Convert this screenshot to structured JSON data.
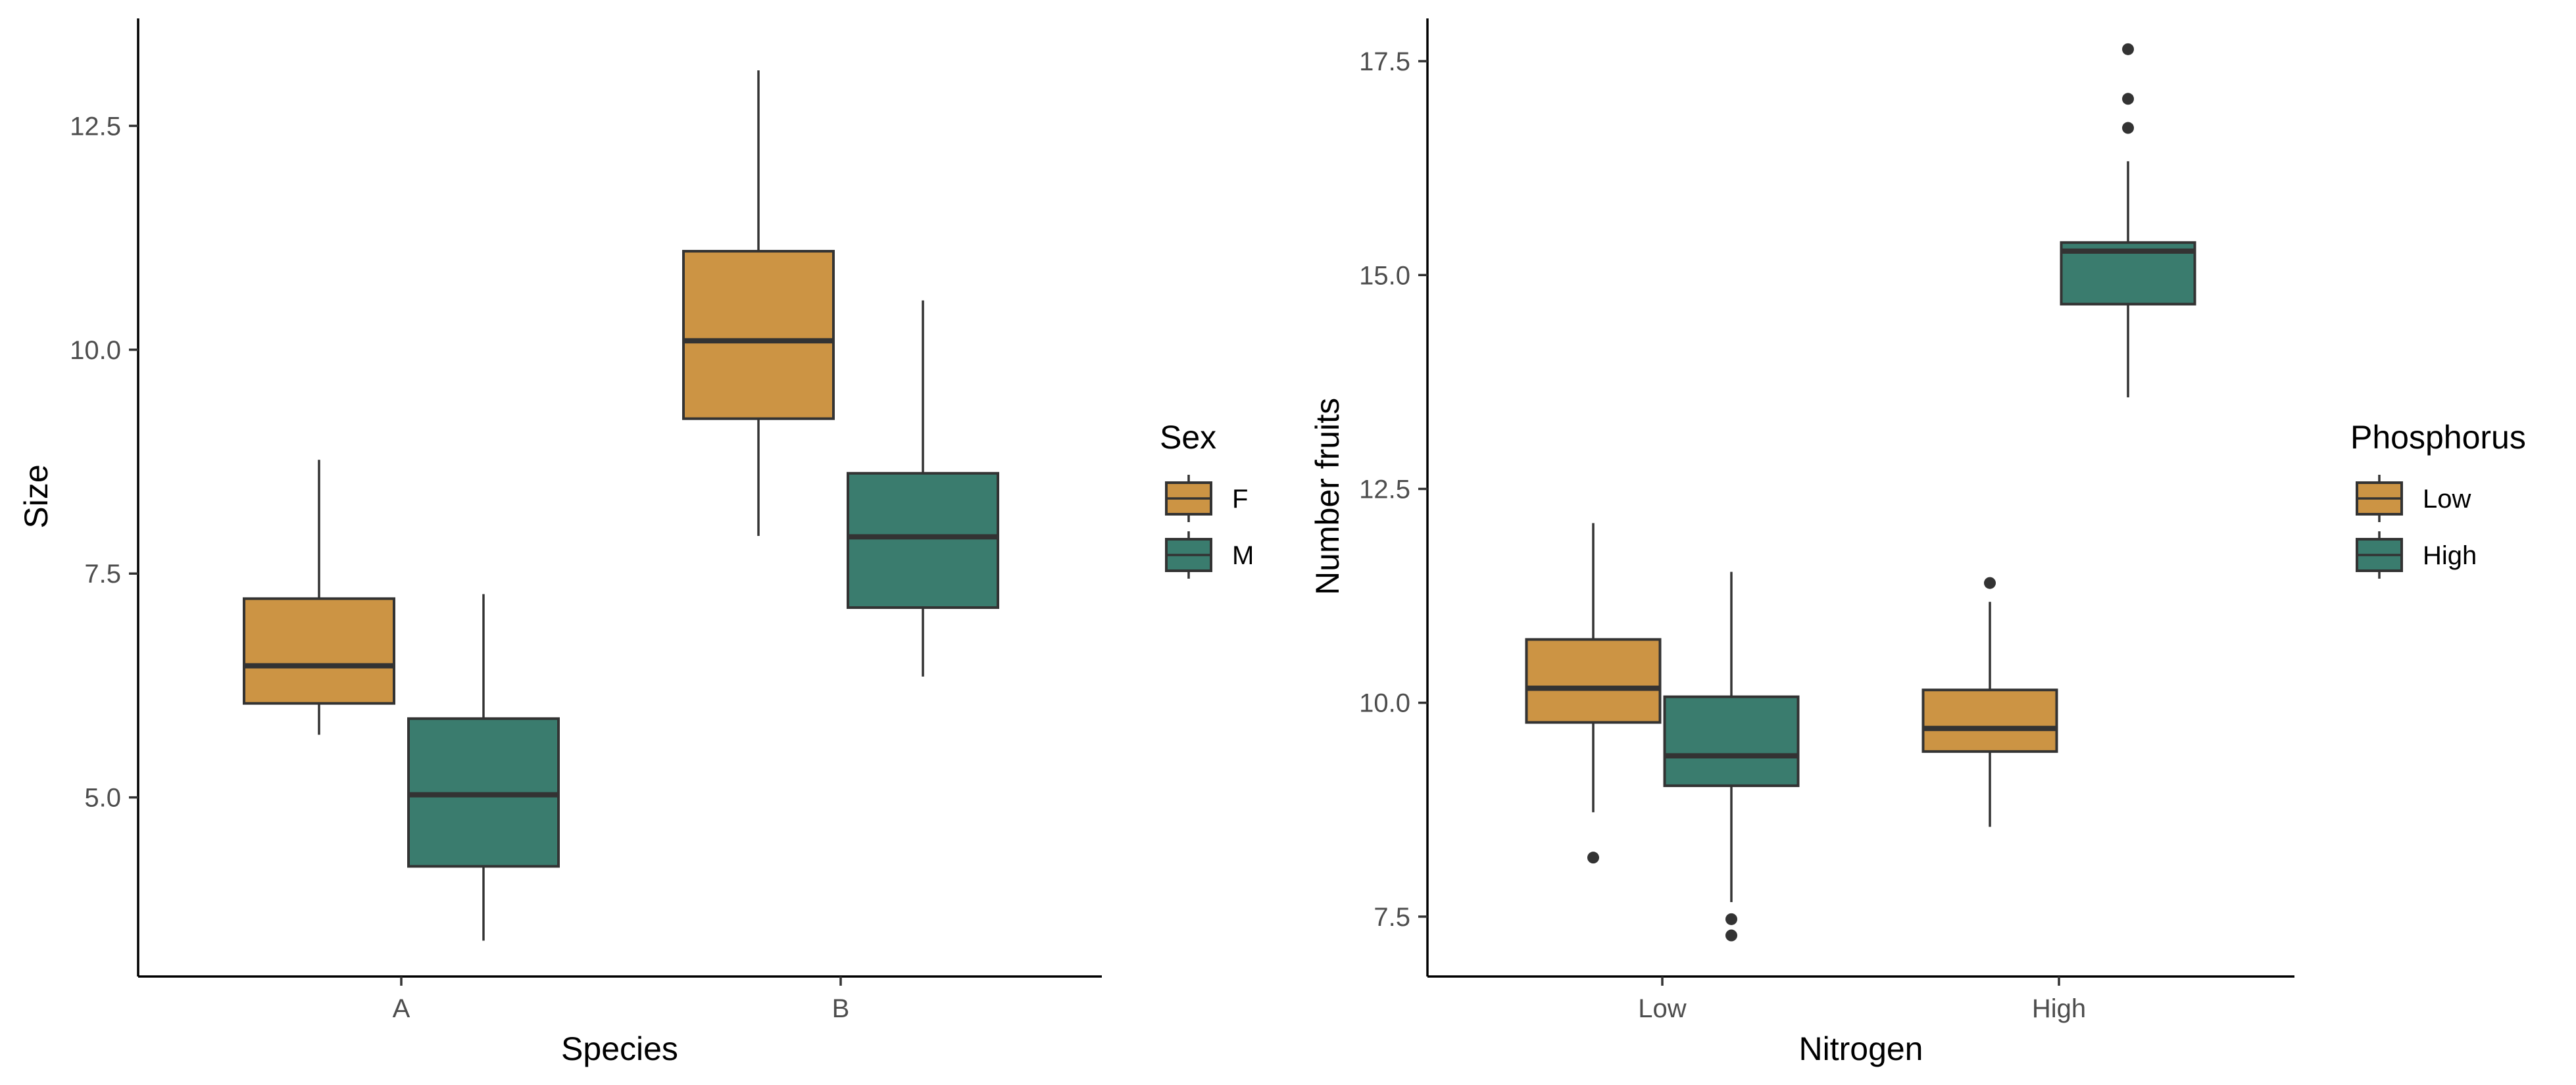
{
  "colors": {
    "low_fill": "#CC9444",
    "high_fill": "#3A7C6E",
    "line": "#333333"
  },
  "chart_data": [
    {
      "type": "boxplot",
      "xlabel": "Species",
      "ylabel": "Size",
      "categories": [
        "A",
        "B"
      ],
      "ylim": [
        3.0,
        13.7
      ],
      "yticks": [
        5.0,
        7.5,
        10.0,
        12.5
      ],
      "ytick_labels": [
        "5.0",
        "7.5",
        "10.0",
        "12.5"
      ],
      "grid": false,
      "legend": {
        "title": "Sex",
        "position": "right",
        "entries": [
          "F",
          "M"
        ]
      },
      "series": [
        {
          "name": "F",
          "color": "#CC9444",
          "boxes": [
            {
              "category": "A",
              "whisker_low": 5.7,
              "q1": 6.05,
              "median": 6.47,
              "q3": 7.22,
              "whisker_high": 8.77,
              "outliers": []
            },
            {
              "category": "B",
              "whisker_low": 7.92,
              "q1": 9.23,
              "median": 10.1,
              "q3": 11.1,
              "whisker_high": 13.12,
              "outliers": []
            }
          ]
        },
        {
          "name": "M",
          "color": "#3A7C6E",
          "boxes": [
            {
              "category": "A",
              "whisker_low": 3.4,
              "q1": 4.23,
              "median": 5.03,
              "q3": 5.88,
              "whisker_high": 7.27,
              "outliers": []
            },
            {
              "category": "B",
              "whisker_low": 6.35,
              "q1": 7.12,
              "median": 7.91,
              "q3": 8.62,
              "whisker_high": 10.55,
              "outliers": []
            }
          ]
        }
      ]
    },
    {
      "type": "boxplot",
      "xlabel": "Nitrogen",
      "ylabel": "Number fruits",
      "categories": [
        "Low",
        "High"
      ],
      "ylim": [
        6.8,
        18.0
      ],
      "yticks": [
        7.5,
        10.0,
        12.5,
        15.0,
        17.5
      ],
      "ytick_labels": [
        "7.5",
        "10.0",
        "12.5",
        "15.0",
        "17.5"
      ],
      "grid": false,
      "legend": {
        "title": "Phosphorus",
        "position": "right",
        "entries": [
          "Low",
          "High"
        ]
      },
      "series": [
        {
          "name": "Low",
          "color": "#CC9444",
          "boxes": [
            {
              "category": "Low",
              "whisker_low": 8.72,
              "q1": 9.77,
              "median": 10.17,
              "q3": 10.74,
              "whisker_high": 12.1,
              "outliers": [
                8.19
              ]
            },
            {
              "category": "High",
              "whisker_low": 8.55,
              "q1": 9.43,
              "median": 9.7,
              "q3": 10.15,
              "whisker_high": 11.18,
              "outliers": [
                11.4
              ]
            }
          ]
        },
        {
          "name": "High",
          "color": "#3A7C6E",
          "boxes": [
            {
              "category": "Low",
              "whisker_low": 7.67,
              "q1": 9.03,
              "median": 9.38,
              "q3": 10.07,
              "whisker_high": 11.53,
              "outliers": [
                7.47,
                7.28
              ]
            },
            {
              "category": "High",
              "whisker_low": 13.57,
              "q1": 14.66,
              "median": 15.28,
              "q3": 15.38,
              "whisker_high": 16.33,
              "outliers": [
                16.72,
                17.06,
                17.64
              ]
            }
          ]
        }
      ]
    }
  ]
}
